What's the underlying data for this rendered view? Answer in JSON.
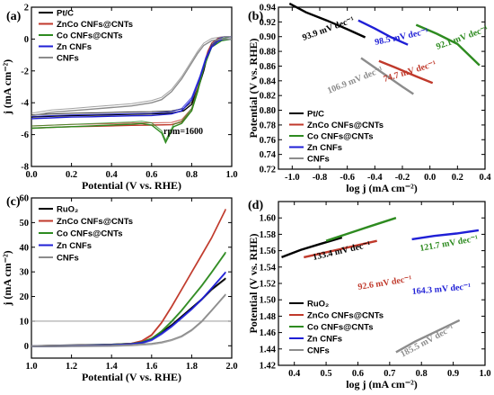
{
  "chart_data": [
    {
      "panel": "(a)",
      "type": "line",
      "xlabel": "Potential (V vs. RHE)",
      "ylabel": "j (mA cm⁻²)",
      "xlim": [
        0.0,
        1.0
      ],
      "ylim": [
        -8,
        2
      ],
      "xticks": [
        "0.0",
        "0.2",
        "0.4",
        "0.6",
        "0.8",
        "1.0"
      ],
      "yticks": [
        "-8",
        "-6",
        "-4",
        "-2",
        "0",
        "2"
      ],
      "legend_position": "top-left",
      "annotations": [
        "rpm=1600"
      ],
      "series": [
        {
          "name": "Pt/C",
          "color": "#000000",
          "x": [
            0.0,
            0.1,
            0.2,
            0.3,
            0.4,
            0.5,
            0.6,
            0.7,
            0.76,
            0.8,
            0.83,
            0.86,
            0.88,
            0.9,
            0.93,
            0.96,
            1.0
          ],
          "y": [
            -4.9,
            -4.85,
            -4.8,
            -4.78,
            -4.75,
            -4.72,
            -4.7,
            -4.65,
            -4.5,
            -4.1,
            -3.2,
            -2.0,
            -1.0,
            -0.4,
            -0.1,
            0.0,
            0.0
          ]
        },
        {
          "name": "ZnCo CNFs@CNTs",
          "color": "#c0392b",
          "x": [
            0.0,
            0.1,
            0.2,
            0.3,
            0.4,
            0.5,
            0.6,
            0.7,
            0.75,
            0.8,
            0.83,
            0.86,
            0.88,
            0.9,
            0.93,
            0.96,
            1.0
          ],
          "y": [
            -5.6,
            -5.55,
            -5.5,
            -5.48,
            -5.45,
            -5.42,
            -5.4,
            -5.38,
            -5.2,
            -4.5,
            -3.2,
            -1.8,
            -0.9,
            -0.4,
            -0.1,
            0.0,
            0.0
          ]
        },
        {
          "name": "Co CNFs@CNTs",
          "color": "#2e8b20",
          "x": [
            0.0,
            0.1,
            0.2,
            0.3,
            0.4,
            0.5,
            0.55,
            0.6,
            0.65,
            0.67,
            0.69,
            0.71,
            0.75,
            0.8,
            0.83,
            0.86,
            0.9,
            0.95,
            1.0
          ],
          "y": [
            -5.6,
            -5.55,
            -5.5,
            -5.45,
            -5.4,
            -5.35,
            -5.3,
            -5.4,
            -5.9,
            -6.5,
            -6.0,
            -5.5,
            -5.3,
            -4.5,
            -3.3,
            -1.8,
            -0.5,
            -0.1,
            0.0
          ]
        },
        {
          "name": "Zn CNFs",
          "color": "#1f1fd6",
          "x": [
            0.0,
            0.1,
            0.2,
            0.3,
            0.4,
            0.5,
            0.6,
            0.7,
            0.75,
            0.8,
            0.84,
            0.87,
            0.9,
            0.93,
            0.96,
            1.0
          ],
          "y": [
            -5.0,
            -4.95,
            -4.9,
            -4.88,
            -4.85,
            -4.82,
            -4.8,
            -4.7,
            -4.5,
            -3.8,
            -2.5,
            -1.3,
            -0.5,
            -0.15,
            0.0,
            0.0
          ]
        },
        {
          "name": "CNFs",
          "color": "#8c8c8c",
          "x": [
            0.0,
            0.1,
            0.2,
            0.3,
            0.4,
            0.5,
            0.6,
            0.65,
            0.7,
            0.75,
            0.8,
            0.83,
            0.86,
            0.9,
            0.95,
            1.0
          ],
          "y": [
            -4.8,
            -4.6,
            -4.5,
            -4.4,
            -4.3,
            -4.2,
            -4.0,
            -3.8,
            -3.3,
            -2.5,
            -1.5,
            -0.9,
            -0.4,
            -0.1,
            0.0,
            0.0
          ]
        }
      ]
    },
    {
      "panel": "(b)",
      "type": "line",
      "xlabel": "log j (mA cm⁻²)",
      "ylabel": "Potential (V vs. RHE)",
      "xlim": [
        -1.1,
        0.4
      ],
      "ylim": [
        0.72,
        0.94
      ],
      "xticks": [
        "-1.0",
        "-0.8",
        "-0.6",
        "-0.4",
        "-0.2",
        "0.0",
        "0.2",
        "0.4"
      ],
      "yticks": [
        "0.72",
        "0.74",
        "0.76",
        "0.78",
        "0.80",
        "0.82",
        "0.84",
        "0.86",
        "0.88",
        "0.90",
        "0.92",
        "0.94"
      ],
      "legend_position": "bottom-left",
      "series": [
        {
          "name": "Pt/C",
          "color": "#000000",
          "x": [
            -1.02,
            -0.9,
            -0.75,
            -0.6,
            -0.47
          ],
          "y": [
            0.945,
            0.933,
            0.922,
            0.91,
            0.899
          ]
        },
        {
          "name": "ZnCo CNFs@CNTs",
          "color": "#c0392b",
          "x": [
            -0.37,
            -0.25,
            -0.1,
            0.02
          ],
          "y": [
            0.867,
            0.858,
            0.846,
            0.837
          ]
        },
        {
          "name": "Co CNFs@CNTs",
          "color": "#2e8b20",
          "x": [
            -0.1,
            0.05,
            0.2,
            0.36
          ],
          "y": [
            0.916,
            0.904,
            0.89,
            0.861
          ]
        },
        {
          "name": "Zn CNFs",
          "color": "#1f1fd6",
          "x": [
            -0.52,
            -0.4,
            -0.28,
            -0.16
          ],
          "y": [
            0.922,
            0.911,
            0.899,
            0.889
          ]
        },
        {
          "name": "CNFs",
          "color": "#8c8c8c",
          "x": [
            -0.5,
            -0.4,
            -0.3,
            -0.2,
            -0.12
          ],
          "y": [
            0.871,
            0.858,
            0.845,
            0.832,
            0.822
          ]
        }
      ],
      "annotations": [
        {
          "text": "93.9 mV dec⁻¹",
          "color": "#000000"
        },
        {
          "text": "98.5 mV dec⁻¹",
          "color": "#1f1fd6"
        },
        {
          "text": "92.1 mV dec⁻¹",
          "color": "#2e8b20"
        },
        {
          "text": "74.7 mV dec⁻¹",
          "color": "#c0392b"
        },
        {
          "text": "106.9 mV dec⁻¹",
          "color": "#8c8c8c"
        }
      ]
    },
    {
      "panel": "(c)",
      "type": "line",
      "xlabel": "Potential (V vs. RHE)",
      "ylabel": "j (mA cm⁻²)",
      "xlim": [
        1.0,
        2.0
      ],
      "ylim": [
        -5,
        60
      ],
      "xticks": [
        "1.0",
        "1.2",
        "1.4",
        "1.6",
        "1.8",
        "2.0"
      ],
      "yticks": [
        "0",
        "10",
        "20",
        "30",
        "40",
        "50",
        "60"
      ],
      "reference_line_y": 10,
      "legend_position": "top-left",
      "series": [
        {
          "name": "RuO₂",
          "color": "#000000",
          "x": [
            1.0,
            1.2,
            1.4,
            1.5,
            1.55,
            1.6,
            1.65,
            1.7,
            1.75,
            1.8,
            1.85,
            1.9,
            1.97
          ],
          "y": [
            0,
            0.3,
            0.6,
            1.0,
            1.5,
            3.0,
            5.5,
            8.5,
            12,
            15.5,
            19,
            23,
            27.5
          ]
        },
        {
          "name": "ZnCo CNFs@CNTs",
          "color": "#c0392b",
          "x": [
            1.0,
            1.2,
            1.4,
            1.5,
            1.55,
            1.6,
            1.65,
            1.7,
            1.75,
            1.8,
            1.85,
            1.9,
            1.97
          ],
          "y": [
            0,
            0.2,
            0.5,
            1.0,
            2.0,
            4.5,
            9.5,
            16,
            23,
            30,
            37,
            44,
            55.5
          ]
        },
        {
          "name": "Co CNFs@CNTs",
          "color": "#2e8b20",
          "x": [
            1.0,
            1.2,
            1.4,
            1.5,
            1.55,
            1.6,
            1.65,
            1.7,
            1.75,
            1.8,
            1.85,
            1.9,
            1.97
          ],
          "y": [
            0,
            0.2,
            0.5,
            0.9,
            1.5,
            3.0,
            6.0,
            10,
            14.5,
            19.5,
            24.5,
            30,
            38
          ]
        },
        {
          "name": "Zn CNFs",
          "color": "#1f1fd6",
          "x": [
            1.0,
            1.2,
            1.4,
            1.5,
            1.55,
            1.6,
            1.65,
            1.7,
            1.75,
            1.8,
            1.85,
            1.9,
            1.97
          ],
          "y": [
            0,
            0.2,
            0.4,
            0.8,
            1.3,
            2.5,
            5.0,
            8.0,
            11.5,
            15,
            19,
            23.5,
            30
          ]
        },
        {
          "name": "CNFs",
          "color": "#8c8c8c",
          "x": [
            1.0,
            1.2,
            1.4,
            1.5,
            1.6,
            1.65,
            1.7,
            1.75,
            1.8,
            1.85,
            1.9,
            1.97
          ],
          "y": [
            0,
            0.1,
            0.2,
            0.4,
            0.9,
            1.5,
            2.5,
            4.0,
            6.5,
            10,
            14.5,
            21
          ]
        }
      ]
    },
    {
      "panel": "(d)",
      "type": "line",
      "xlabel": "log j (mA cm⁻²)",
      "ylabel": "Potential (V vs. RHE)",
      "xlim": [
        0.35,
        1.0
      ],
      "ylim": [
        1.42,
        1.62
      ],
      "xticks": [
        "0.4",
        "0.5",
        "0.6",
        "0.7",
        "0.8",
        "0.9",
        "1.0"
      ],
      "yticks": [
        "1.42",
        "1.44",
        "1.46",
        "1.48",
        "1.50",
        "1.52",
        "1.54",
        "1.56",
        "1.58",
        "1.60"
      ],
      "legend_position": "bottom-left",
      "series": [
        {
          "name": "RuO₂",
          "color": "#000000",
          "x": [
            0.36,
            0.42,
            0.48,
            0.55
          ],
          "y": [
            1.552,
            1.561,
            1.568,
            1.576
          ]
        },
        {
          "name": "ZnCo CNFs@CNTs",
          "color": "#c0392b",
          "x": [
            0.43,
            0.5,
            0.58,
            0.66
          ],
          "y": [
            1.552,
            1.558,
            1.565,
            1.572
          ]
        },
        {
          "name": "Co CNFs@CNTs",
          "color": "#2e8b20",
          "x": [
            0.5,
            0.57,
            0.64,
            0.72
          ],
          "y": [
            1.572,
            1.581,
            1.59,
            1.6
          ]
        },
        {
          "name": "Zn CNFs",
          "color": "#1f1fd6",
          "x": [
            0.77,
            0.84,
            0.91,
            0.98
          ],
          "y": [
            1.574,
            1.578,
            1.581,
            1.585
          ]
        },
        {
          "name": "CNFs",
          "color": "#8c8c8c",
          "x": [
            0.72,
            0.78,
            0.85,
            0.92
          ],
          "y": [
            1.436,
            1.449,
            1.462,
            1.475
          ]
        }
      ],
      "annotations": [
        {
          "text": "133.4 mV dec⁻¹",
          "color": "#000000"
        },
        {
          "text": "121.7 mV dec⁻¹",
          "color": "#2e8b20"
        },
        {
          "text": "92.6 mV dec⁻¹",
          "color": "#c0392b"
        },
        {
          "text": "164.3 mV dec⁻¹",
          "color": "#1f1fd6"
        },
        {
          "text": "185.5 mV dec⁻¹",
          "color": "#8c8c8c"
        }
      ]
    }
  ]
}
